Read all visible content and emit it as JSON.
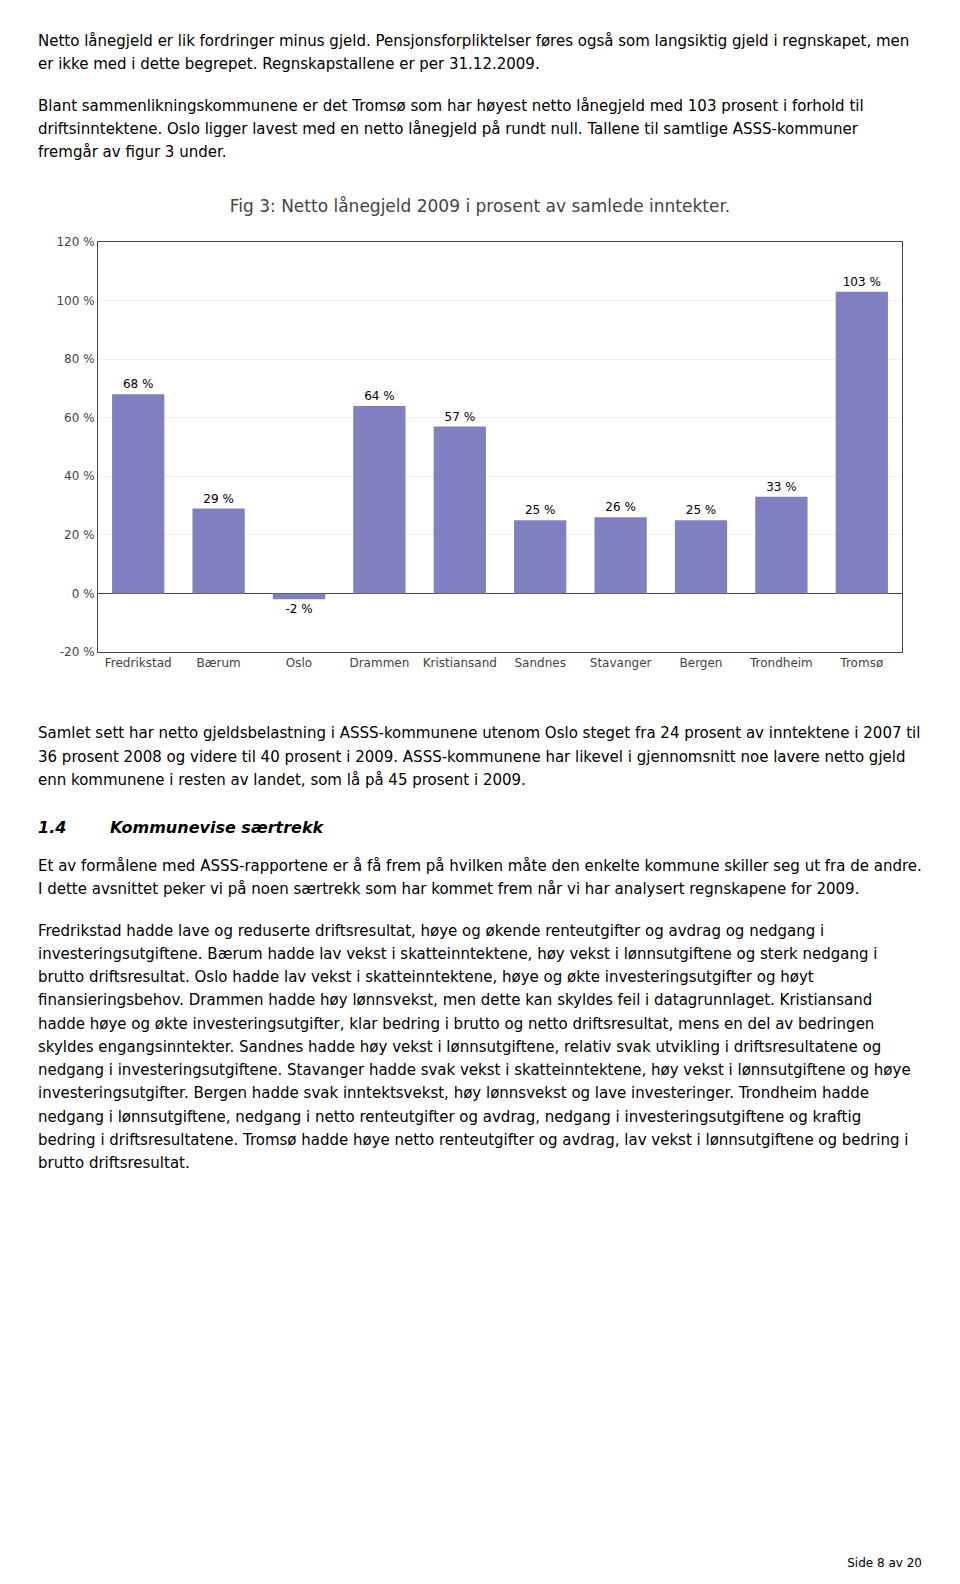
{
  "texts_before": [
    "Netto lånegjeld er lik fordringer minus gjeld. Pensjonsforpliktelser føres også som langsiktig gjeld i regnskapet, men er ikke med i dette begrepet. Regnskapstallene er per 31.12.2009.",
    "Blant sammenlikningskommunene er det Tromsø som har høyest netto lånegjeld med 103 prosent i forhold til driftsinntektene. Oslo ligger lavest med en netto lånegjeld på rundt null. Tallene til samtlige ASSS-kommuner fremgår av figur 3 under."
  ],
  "chart_data": {
    "type": "bar",
    "title": "Fig 3: Netto lånegjeld 2009 i prosent av samlede inntekter.",
    "categories": [
      "Fredrikstad",
      "Bærum",
      "Oslo",
      "Drammen",
      "Kristiansand",
      "Sandnes",
      "Stavanger",
      "Bergen",
      "Trondheim",
      "Tromsø"
    ],
    "values": [
      68,
      29,
      -2,
      64,
      57,
      25,
      26,
      25,
      33,
      103
    ],
    "value_labels": [
      "68 %",
      "29 %",
      "-2 %",
      "64 %",
      "57 %",
      "25 %",
      "26 %",
      "25 %",
      "33 %",
      "103 %"
    ],
    "data_labels": true,
    "color": "#8080c0",
    "ylim": [
      -20,
      120
    ],
    "yticks": [
      {
        "value": -20,
        "label": "-20 %"
      },
      {
        "value": 0,
        "label": "0 %"
      },
      {
        "value": 20,
        "label": "20 %"
      },
      {
        "value": 40,
        "label": "40 %"
      },
      {
        "value": 60,
        "label": "60 %"
      },
      {
        "value": 80,
        "label": "80 %"
      },
      {
        "value": 100,
        "label": "100 %"
      },
      {
        "value": 120,
        "label": "120 %"
      }
    ],
    "grid": true
  },
  "texts_after": [
    "Samlet sett har netto gjeldsbelastning i ASSS-kommunene utenom Oslo steget fra 24 prosent av inntektene i 2007 til 36 prosent 2008 og videre til 40 prosent i 2009. ASSS-kommunene har likevel i gjennomsnitt noe lavere netto gjeld enn kommunene i resten av landet, som lå på 45 prosent i 2009."
  ],
  "heading": [
    "1.4",
    "Kommunevise særtrekk"
  ],
  "texts_after_heading": [
    "Et av formålene med ASSS-rapportene er å få frem på hvilken måte den enkelte kommune skiller seg ut fra de andre. I dette avsnittet peker vi på noen særtrekk som har kommet frem når vi har analysert regnskapene for 2009.",
    "Fredrikstad hadde lave og reduserte driftsresultat, høye og økende renteutgifter og avdrag og nedgang i investeringsutgiftene. Bærum hadde lav vekst i skatteinntektene, høy vekst i lønnsutgiftene og sterk nedgang i brutto driftsresultat. Oslo hadde lav vekst i skatteinntektene, høye og økte investeringsutgifter og høyt finansieringsbehov. Drammen hadde høy lønnsvekst, men dette kan skyldes feil i datagrunnlaget. Kristiansand hadde høye og økte investeringsutgifter, klar bedring i brutto og netto driftsresultat, mens en del av bedringen skyldes engangsinntekter. Sandnes hadde høy vekst i lønnsutgiftene, relativ svak utvikling i driftsresultatene og nedgang i investeringsutgiftene. Stavanger hadde svak vekst i skatteinntektene, høy vekst i lønnsutgiftene og høye investeringsutgifter. Bergen hadde svak inntektsvekst, høy lønnsvekst og lave investeringer. Trondheim hadde nedgang i lønnsutgiftene, nedgang i netto renteutgifter og avdrag, nedgang i investeringsutgiftene og kraftig bedring i driftsresultatene. Tromsø hadde høye netto renteutgifter og avdrag, lav vekst i lønnsutgiftene og bedring i brutto driftsresultat."
  ],
  "footer": "Side 8 av 20"
}
